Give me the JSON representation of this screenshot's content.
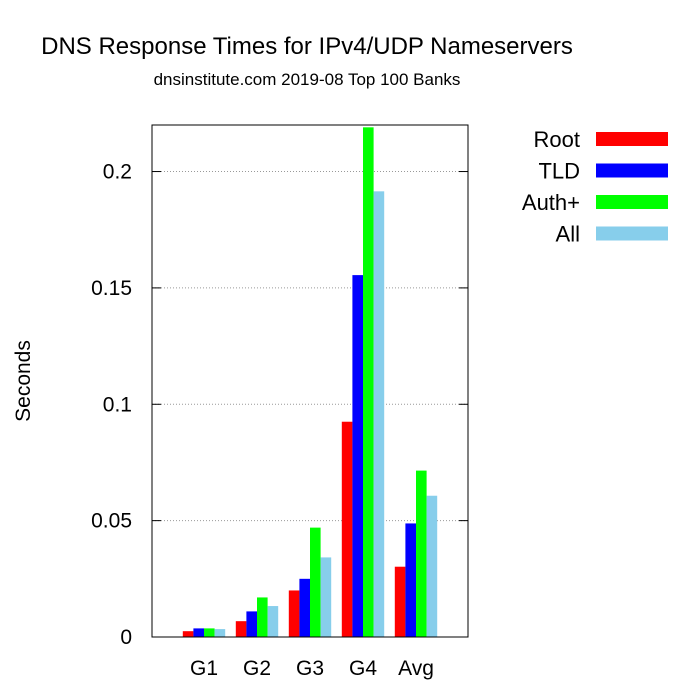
{
  "chart_data": {
    "type": "bar",
    "title": "DNS Response Times for IPv4/UDP Nameservers",
    "subtitle": "dnsinstitute.com 2019-08 Top 100 Banks",
    "xlabel": "",
    "ylabel": "Seconds",
    "categories": [
      "G1",
      "G2",
      "G3",
      "G4",
      "Avg"
    ],
    "ylim": [
      0,
      0.22
    ],
    "yticks": [
      0,
      0.05,
      0.1,
      0.15,
      0.2
    ],
    "ytick_labels": [
      "0",
      "0.05",
      "0.1",
      "0.15",
      "0.2"
    ],
    "grid": "horizontal dotted",
    "legend_position": "right",
    "series": [
      {
        "name": "Root",
        "color": "#ff0000",
        "values": [
          0.0025,
          0.0068,
          0.02,
          0.0925,
          0.0302
        ]
      },
      {
        "name": "TLD",
        "color": "#0000ff",
        "values": [
          0.0037,
          0.011,
          0.025,
          0.1555,
          0.0488
        ]
      },
      {
        "name": "Auth+",
        "color": "#00ff00",
        "values": [
          0.0037,
          0.017,
          0.047,
          0.219,
          0.0715
        ]
      },
      {
        "name": "All",
        "color": "#87ceeb",
        "values": [
          0.0034,
          0.0133,
          0.0342,
          0.1915,
          0.0607
        ]
      }
    ]
  }
}
